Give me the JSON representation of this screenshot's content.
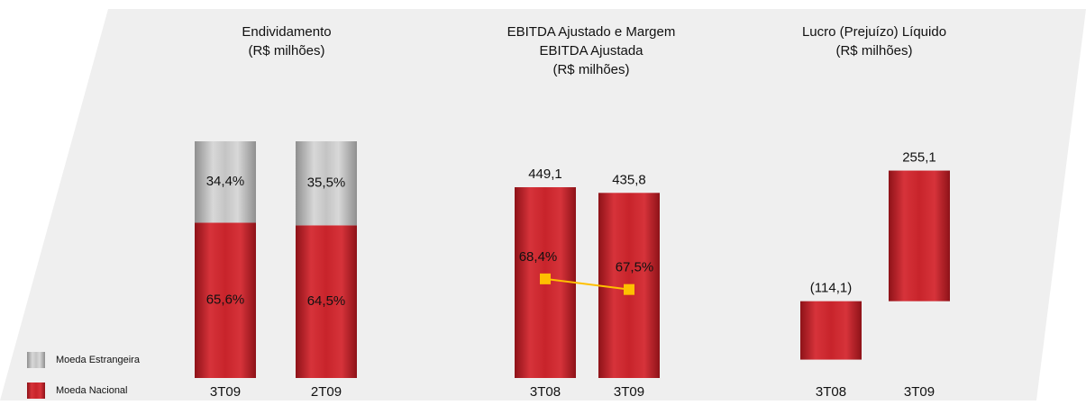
{
  "chart_data": [
    {
      "type": "stacked_bar",
      "title": [
        "Endividamento",
        "(R$ milhões)"
      ],
      "categories": [
        "3T09",
        "2T09"
      ],
      "series": [
        {
          "name": "Moeda Nacional",
          "color": "#c8242b",
          "values": [
            65.6,
            64.5
          ],
          "value_labels": [
            "65,6%",
            "64,5%"
          ]
        },
        {
          "name": "Moeda Estrangeira",
          "color": "#b9b9b9",
          "values": [
            34.4,
            35.5
          ],
          "value_labels": [
            "34,4%",
            "35,5%"
          ]
        }
      ],
      "ylim": [
        0,
        100
      ]
    },
    {
      "type": "bar_line",
      "title": [
        "EBITDA Ajustado e Margem",
        "EBITDA Ajustada",
        "(R$ milhões)"
      ],
      "categories": [
        "3T08",
        "3T09"
      ],
      "values": [
        449.1,
        435.8
      ],
      "value_labels": [
        "449,1",
        "435,8"
      ],
      "color": "#c8242b",
      "line": {
        "values": [
          68.4,
          67.5
        ],
        "value_labels": [
          "68,4%",
          "67,5%"
        ],
        "color": "#ffc000",
        "axis": "y2"
      },
      "ylim": [
        0,
        500
      ],
      "y2lim": [
        60,
        78
      ]
    },
    {
      "type": "bar",
      "title": [
        "Lucro (Prejuízo) Líquido",
        "(R$ milhões)"
      ],
      "categories": [
        "3T08",
        "3T09"
      ],
      "values": [
        -114.1,
        255.1
      ],
      "value_labels": [
        "(114,1)",
        "255,1"
      ],
      "color": "#c8242b",
      "ylim": [
        -150,
        300
      ]
    }
  ]
}
